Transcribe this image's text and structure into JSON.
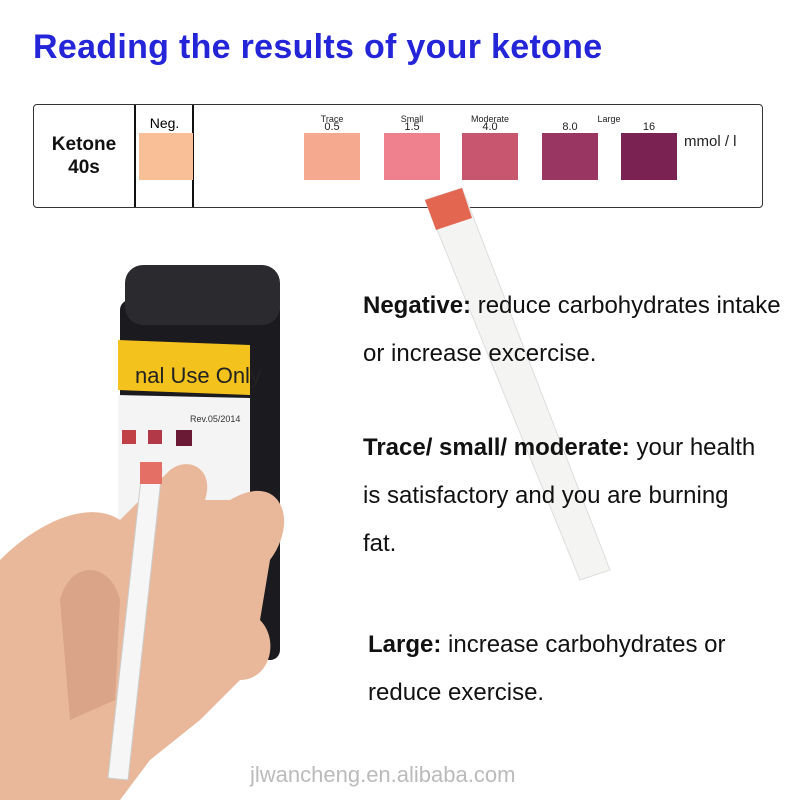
{
  "title": "Reading the results of your ketone",
  "chart": {
    "label_line1": "Ketone",
    "label_line2": "40s",
    "neg_label": "Neg.",
    "neg_color": "#f9bf96",
    "levels": [
      {
        "name": "Trace",
        "value": "0.5",
        "color": "#f5a98e"
      },
      {
        "name": "Small",
        "value": "1.5",
        "color": "#ef818f"
      },
      {
        "name": "Moderate",
        "value": "4.0",
        "color": "#c9566f"
      },
      {
        "name": "",
        "value": "8.0",
        "color": "#9a3662"
      },
      {
        "name": "",
        "value": "16",
        "color": "#7a2352"
      }
    ],
    "large_label": "Large",
    "unit": "mmol / l"
  },
  "bottle_label": "nal Use Only",
  "bottle_rev": "Rev.05/2014",
  "results": [
    {
      "head": "Negative:",
      "body": " reduce carbohydrates intake or increase excercise."
    },
    {
      "head": "Trace/ small/ moderate:",
      "body": " your health is satisfactory and you are burning fat."
    },
    {
      "head": "Large:",
      "body": " increase carbohydrates or reduce exercise."
    }
  ],
  "watermark": "jlwancheng.en.alibaba.com",
  "colors": {
    "title": "#2424d9"
  }
}
